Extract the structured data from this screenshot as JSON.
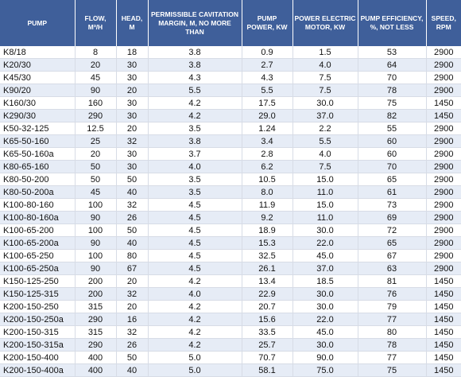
{
  "headers": [
    "PUMP",
    "FLOW, M³/H",
    "HEAD, M",
    "PERMISSIBLE CAVITATION MARGIN, M, NO MORE THAN",
    "PUMP POWER, KW",
    "POWER ELECTRIC MOTOR, KW",
    "PUMP EFFICIENCY, %, NOT LESS",
    "SPEED, RPM"
  ],
  "rows": [
    [
      "K8/18",
      "8",
      "18",
      "3.8",
      "0.9",
      "1.5",
      "53",
      "2900"
    ],
    [
      "K20/30",
      "20",
      "30",
      "3.8",
      "2.7",
      "4.0",
      "64",
      "2900"
    ],
    [
      "K45/30",
      "45",
      "30",
      "4.3",
      "4.3",
      "7.5",
      "70",
      "2900"
    ],
    [
      "K90/20",
      "90",
      "20",
      "5.5",
      "5.5",
      "7.5",
      "78",
      "2900"
    ],
    [
      "K160/30",
      "160",
      "30",
      "4.2",
      "17.5",
      "30.0",
      "75",
      "1450"
    ],
    [
      "K290/30",
      "290",
      "30",
      "4.2",
      "29.0",
      "37.0",
      "82",
      "1450"
    ],
    [
      "K50-32-125",
      "12.5",
      "20",
      "3.5",
      "1.24",
      "2.2",
      "55",
      "2900"
    ],
    [
      "K65-50-160",
      "25",
      "32",
      "3.8",
      "3.4",
      "5.5",
      "60",
      "2900"
    ],
    [
      "K65-50-160a",
      "20",
      "30",
      "3.7",
      "2.8",
      "4.0",
      "60",
      "2900"
    ],
    [
      "K80-65-160",
      "50",
      "30",
      "4.0",
      "6.2",
      "7.5",
      "70",
      "2900"
    ],
    [
      "K80-50-200",
      "50",
      "50",
      "3.5",
      "10.5",
      "15.0",
      "65",
      "2900"
    ],
    [
      "K80-50-200a",
      "45",
      "40",
      "3.5",
      "8.0",
      "11.0",
      "61",
      "2900"
    ],
    [
      "K100-80-160",
      "100",
      "32",
      "4.5",
      "11.9",
      "15.0",
      "73",
      "2900"
    ],
    [
      "K100-80-160a",
      "90",
      "26",
      "4.5",
      "9.2",
      "11.0",
      "69",
      "2900"
    ],
    [
      "K100-65-200",
      "100",
      "50",
      "4.5",
      "18.9",
      "30.0",
      "72",
      "2900"
    ],
    [
      "K100-65-200a",
      "90",
      "40",
      "4.5",
      "15.3",
      "22.0",
      "65",
      "2900"
    ],
    [
      "K100-65-250",
      "100",
      "80",
      "4.5",
      "32.5",
      "45.0",
      "67",
      "2900"
    ],
    [
      "K100-65-250a",
      "90",
      "67",
      "4.5",
      "26.1",
      "37.0",
      "63",
      "2900"
    ],
    [
      "K150-125-250",
      "200",
      "20",
      "4.2",
      "13.4",
      "18.5",
      "81",
      "1450"
    ],
    [
      "K150-125-315",
      "200",
      "32",
      "4.0",
      "22.9",
      "30.0",
      "76",
      "1450"
    ],
    [
      "K200-150-250",
      "315",
      "20",
      "4.2",
      "20.7",
      "30.0",
      "79",
      "1450"
    ],
    [
      "K200-150-250a",
      "290",
      "16",
      "4.2",
      "15.6",
      "22.0",
      "77",
      "1450"
    ],
    [
      "K200-150-315",
      "315",
      "32",
      "4.2",
      "33.5",
      "45.0",
      "80",
      "1450"
    ],
    [
      "K200-150-315a",
      "290",
      "26",
      "4.2",
      "25.7",
      "30.0",
      "78",
      "1450"
    ],
    [
      "K200-150-400",
      "400",
      "50",
      "5.0",
      "70.7",
      "90.0",
      "77",
      "1450"
    ],
    [
      "K200-150-400a",
      "400",
      "40",
      "5.0",
      "58.1",
      "75.0",
      "75",
      "1450"
    ]
  ]
}
